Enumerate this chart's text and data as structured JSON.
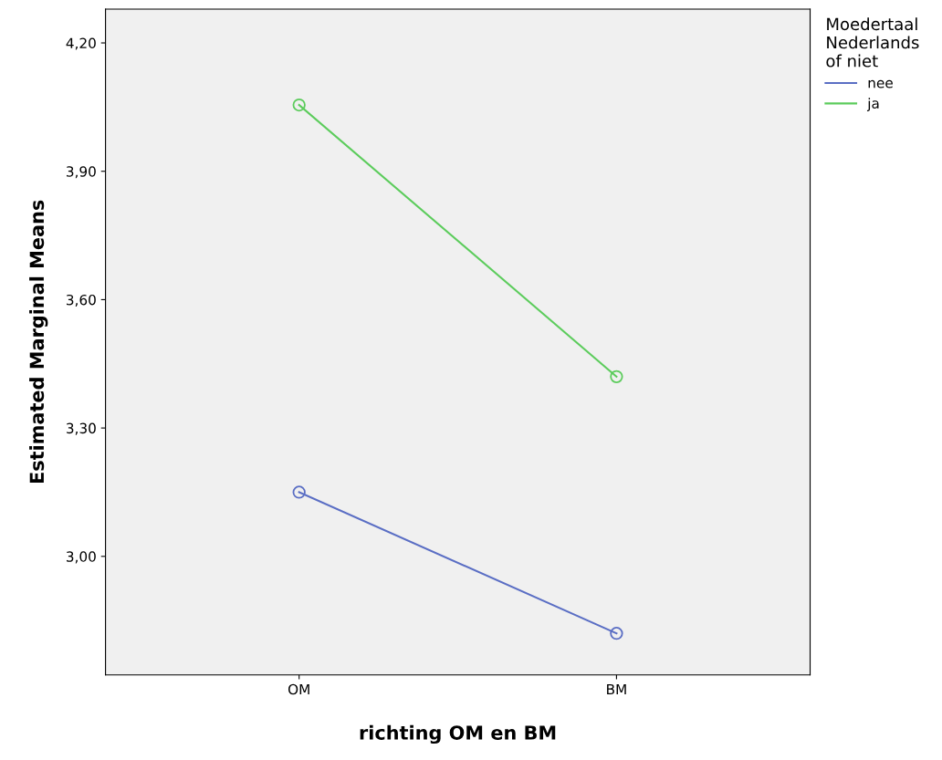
{
  "chart_data": {
    "type": "line",
    "xlabel": "richting OM en BM",
    "ylabel": "Estimated Marginal Means",
    "legend_title": "Moedertaal\nNederlands\nof niet",
    "categories": [
      "OM",
      "BM"
    ],
    "series": [
      {
        "name": "nee",
        "color": "#5a6ec4",
        "values": [
          3.15,
          2.82
        ]
      },
      {
        "name": "ja",
        "color": "#5ccc5c",
        "values": [
          4.055,
          3.42
        ]
      }
    ],
    "ylim": [
      2.723,
      4.279
    ],
    "yticks": [
      {
        "value": 3.0,
        "label": "3,00"
      },
      {
        "value": 3.3,
        "label": "3,30"
      },
      {
        "value": 3.6,
        "label": "3,60"
      },
      {
        "value": 3.9,
        "label": "3,90"
      },
      {
        "value": 4.2,
        "label": "4,20"
      }
    ],
    "marker": "circle",
    "line_style": "solid",
    "grid": false,
    "legend": "right"
  }
}
